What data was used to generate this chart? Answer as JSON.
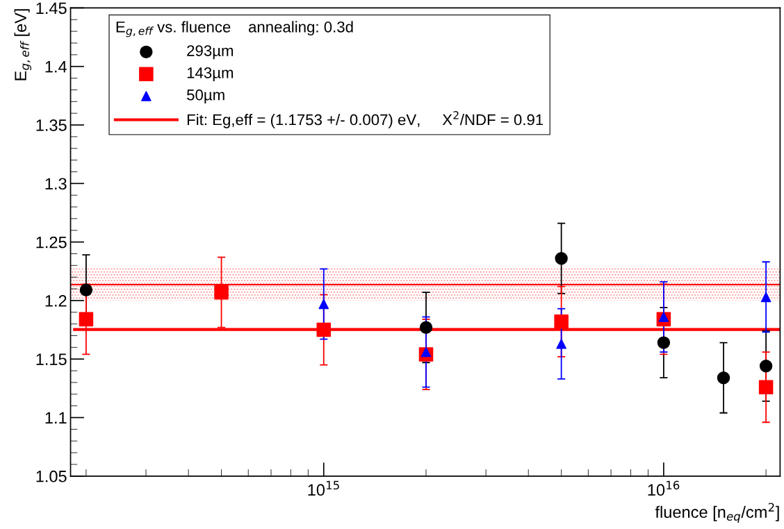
{
  "chart_data": {
    "type": "scatter",
    "xlabel": "fluence [n$_{eq}$/cm$^{2}$]",
    "ylabel": "E$_{g,eff}$ [eV]",
    "legend_title": "E$_{g,eff}$ vs. fluence    annealing: 0.3d",
    "log": "x",
    "xlim": [
      180000000000000.0,
      2.2e+16
    ],
    "xticks": [
      {
        "value": 1000000000000000.0,
        "label": "10$^{15}$"
      },
      {
        "value": 1e+16,
        "label": "10$^{16}$"
      }
    ],
    "ylim": [
      1.05,
      1.45
    ],
    "yticks": [
      1.05,
      1.1,
      1.15,
      1.2,
      1.25,
      1.3,
      1.35,
      1.4,
      1.45
    ],
    "grid": false,
    "legend": "top",
    "series": [
      {
        "name": "293µm",
        "color": "#000000",
        "marker": "circle",
        "x": [
          200000000000000.0,
          2000000000000000.0,
          5000000000000000.0,
          1e+16,
          1.5e+16,
          2e+16
        ],
        "values": [
          1.209,
          1.177,
          1.236,
          1.164,
          1.134,
          1.144
        ],
        "errors": [
          0.03,
          0.03,
          0.03,
          0.03,
          0.03,
          0.03
        ]
      },
      {
        "name": "143µm",
        "color": "#ff0000",
        "marker": "square",
        "x": [
          200000000000000.0,
          500000000000000.0,
          1000000000000000.0,
          2000000000000000.0,
          5000000000000000.0,
          1e+16,
          2e+16
        ],
        "values": [
          1.184,
          1.207,
          1.175,
          1.154,
          1.182,
          1.184,
          1.126
        ],
        "errors": [
          0.03,
          0.03,
          0.03,
          0.03,
          0.03,
          0.03,
          0.03
        ]
      },
      {
        "name": "50µm",
        "color": "#0000ff",
        "marker": "triangle",
        "x": [
          1000000000000000.0,
          2000000000000000.0,
          5000000000000000.0,
          1e+16,
          2e+16
        ],
        "values": [
          1.197,
          1.156,
          1.163,
          1.186,
          1.203
        ],
        "errors": [
          0.03,
          0.03,
          0.03,
          0.03,
          0.03
        ]
      },
      {
        "name": "Fit: Eg,eff = (1.1753 +/- 0.007) eV,     Χ$^{2}$/NDF = 0.91",
        "type": "line",
        "color": "#ff0000",
        "marker": "none",
        "line_style": "solid",
        "x": [
          185000000000000.0,
          2.2e+16
        ],
        "values": [
          1.1753,
          1.1753
        ]
      }
    ],
    "ref_lines": [
      {
        "axis": "y",
        "value": 1.2136,
        "color": "#ff0000",
        "line_style": "solid"
      }
    ],
    "bands": [
      {
        "axis": "y",
        "from": 1.2,
        "to": 1.229,
        "color": "#ff0000"
      }
    ]
  }
}
